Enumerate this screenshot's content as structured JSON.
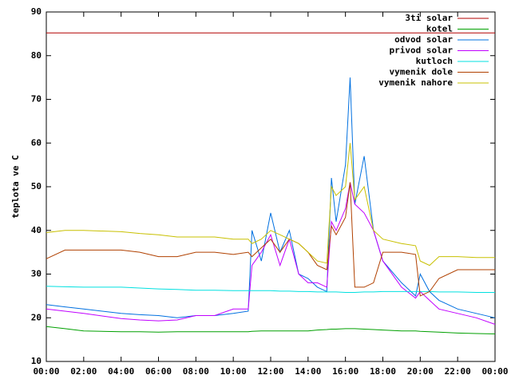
{
  "chart_data": {
    "type": "line",
    "y_label": "teplota ve C",
    "x": [
      0,
      1,
      2,
      4,
      5,
      6,
      7,
      8,
      9,
      10,
      10.8,
      11,
      11.5,
      12,
      12.5,
      13,
      13.5,
      14,
      14.5,
      15,
      15.25,
      15.5,
      16,
      16.25,
      16.5,
      17,
      17.5,
      18,
      19,
      19.75,
      20,
      20.5,
      21,
      22,
      23,
      24
    ],
    "xlim": [
      0,
      24
    ],
    "xticks": [
      {
        "value": 0,
        "label": "00:00"
      },
      {
        "value": 2,
        "label": "02:00"
      },
      {
        "value": 4,
        "label": "04:00"
      },
      {
        "value": 6,
        "label": "06:00"
      },
      {
        "value": 8,
        "label": "08:00"
      },
      {
        "value": 10,
        "label": "10:00"
      },
      {
        "value": 12,
        "label": "12:00"
      },
      {
        "value": 14,
        "label": "14:00"
      },
      {
        "value": 16,
        "label": "16:00"
      },
      {
        "value": 18,
        "label": "18:00"
      },
      {
        "value": 20,
        "label": "20:00"
      },
      {
        "value": 22,
        "label": "22:00"
      },
      {
        "value": 24,
        "label": "00:00"
      }
    ],
    "ylim": [
      10,
      90
    ],
    "yticks": [
      10,
      20,
      30,
      40,
      50,
      60,
      70,
      80,
      90
    ],
    "legend": "top-right",
    "series": [
      {
        "name": "3ti solar",
        "color": "#b30000",
        "values": [
          85.2,
          85.2,
          85.2,
          85.2,
          85.2,
          85.2,
          85.2,
          85.2,
          85.2,
          85.2,
          85.2,
          85.2,
          85.2,
          85.2,
          85.2,
          85.2,
          85.2,
          85.2,
          85.2,
          85.2,
          85.2,
          85.2,
          85.2,
          85.2,
          85.2,
          85.2,
          85.2,
          85.2,
          85.2,
          85.2,
          85.2,
          85.2,
          85.2,
          85.2,
          85.2,
          85.2
        ]
      },
      {
        "name": "kotel",
        "color": "#00a000",
        "values": [
          18,
          17.5,
          17,
          16.8,
          16.8,
          16.7,
          16.8,
          16.8,
          16.8,
          16.8,
          16.8,
          16.9,
          17,
          17,
          17,
          17,
          17,
          17,
          17.2,
          17.3,
          17.4,
          17.4,
          17.5,
          17.5,
          17.5,
          17.4,
          17.3,
          17.2,
          17,
          17,
          16.9,
          16.8,
          16.7,
          16.5,
          16.4,
          16.3
        ]
      },
      {
        "name": "odvod solar",
        "color": "#0070e0",
        "values": [
          23,
          22.5,
          22,
          21,
          20.7,
          20.5,
          20,
          20.5,
          20.5,
          21,
          21.5,
          40,
          33,
          44,
          35,
          40,
          30,
          29,
          27,
          26,
          52,
          42,
          55,
          75,
          46,
          57,
          40,
          33,
          28,
          25,
          30,
          26,
          24,
          22,
          21,
          20
        ]
      },
      {
        "name": "privod solar",
        "color": "#c000ff",
        "values": [
          22,
          21.5,
          21,
          19.8,
          19.5,
          19.3,
          19.5,
          20.5,
          20.5,
          22,
          22,
          32,
          35,
          39,
          32,
          38,
          30,
          28,
          28,
          27,
          42,
          40,
          45,
          51,
          46,
          44,
          40,
          33,
          27,
          24.5,
          26,
          24,
          22,
          21,
          20,
          18.5
        ]
      },
      {
        "name": "kutloch",
        "color": "#00e0e0",
        "values": [
          27.2,
          27.1,
          27,
          27,
          26.8,
          26.6,
          26.5,
          26.3,
          26.3,
          26.2,
          26.2,
          26.2,
          26.2,
          26.2,
          26.1,
          26.1,
          26,
          26,
          25.9,
          25.9,
          25.9,
          25.9,
          25.8,
          25.8,
          25.8,
          25.9,
          25.9,
          26,
          26,
          26,
          26,
          26,
          25.9,
          25.9,
          25.8,
          25.8
        ]
      },
      {
        "name": "vymenik dole",
        "color": "#b04000",
        "values": [
          33.5,
          35.5,
          35.5,
          35.5,
          35,
          34,
          34,
          35,
          35,
          34.5,
          35,
          34,
          36,
          38,
          35,
          38,
          37,
          35,
          32,
          31,
          41,
          39,
          43,
          51,
          27,
          27,
          28,
          35,
          35,
          34.5,
          25,
          26,
          29,
          31,
          31,
          31
        ]
      },
      {
        "name": "vymenik nahore",
        "color": "#c8c000",
        "values": [
          39.5,
          40,
          40,
          39.7,
          39.3,
          39,
          38.5,
          38.5,
          38.5,
          38,
          38,
          37,
          38,
          40,
          39,
          38,
          37,
          35,
          33,
          32.5,
          50,
          48,
          50,
          60,
          47,
          50,
          40,
          38,
          37,
          36.5,
          33,
          32,
          34,
          34,
          33.8,
          33.8
        ]
      }
    ]
  }
}
